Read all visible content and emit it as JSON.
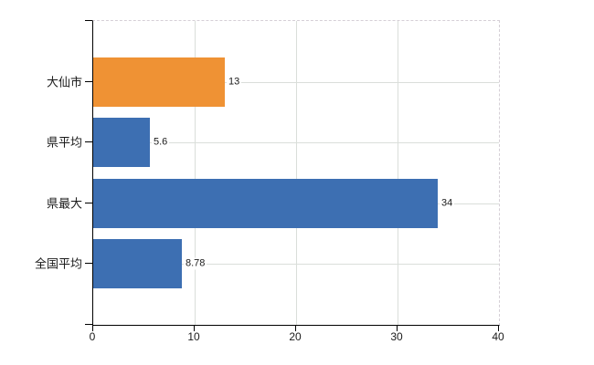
{
  "chart_data": {
    "type": "bar",
    "orientation": "horizontal",
    "title": "",
    "xlabel": "",
    "ylabel": "",
    "categories": [
      "大仙市",
      "県平均",
      "県最大",
      "全国平均"
    ],
    "values": [
      13,
      5.6,
      34,
      8.78
    ],
    "value_labels": [
      "13",
      "5.6",
      "34",
      "8.78"
    ],
    "bar_colors": [
      "#EF9234",
      "#3D6FB2",
      "#3D6FB2",
      "#3D6FB2"
    ],
    "xlim": [
      0,
      40
    ],
    "x_ticks": [
      0,
      10,
      20,
      30,
      40
    ],
    "grid": true,
    "legend": "none",
    "colors": {
      "axis": "#000000",
      "gridline": "#dadeda",
      "dashed_border": "#d5cfd6",
      "text": "#1a1a1a",
      "background": "#ffffff",
      "accent_orange": "#EF9234",
      "accent_blue": "#3D6FB2"
    }
  }
}
